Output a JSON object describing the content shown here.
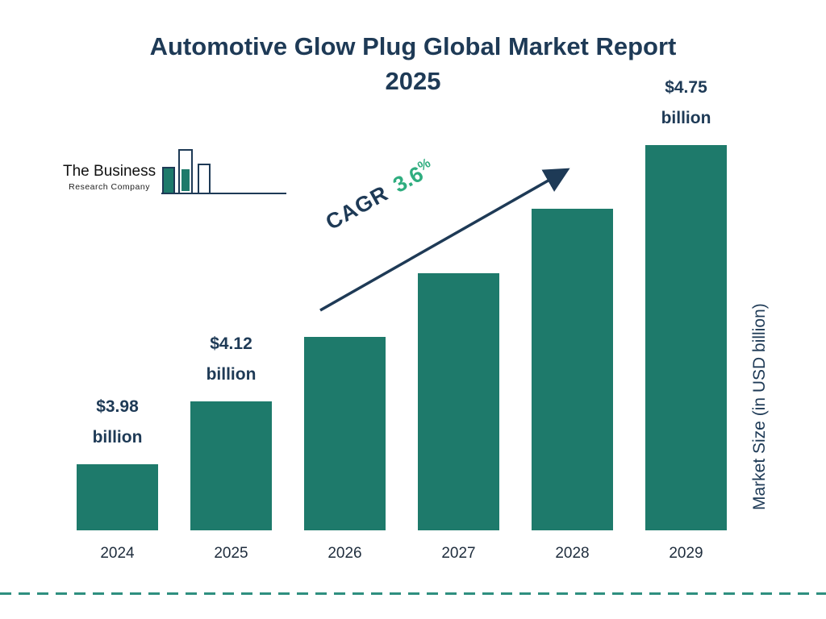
{
  "title": {
    "line1": "Automotive Glow Plug Global Market Report",
    "line2": "2025"
  },
  "logo": {
    "line1": "The Business",
    "line2": "Research Company"
  },
  "cagr": {
    "prefix": "CAGR",
    "value": "3.6",
    "percent": "%"
  },
  "colors": {
    "bar": "#1E7A6B",
    "navy": "#1E3A56",
    "green": "#2FAD7F",
    "dash": "#2E8F7F"
  },
  "chart_data": {
    "type": "bar",
    "title": "Automotive Glow Plug Global Market Report 2025",
    "categories": [
      "2024",
      "2025",
      "2026",
      "2027",
      "2028",
      "2029"
    ],
    "values": [
      3.98,
      4.12,
      null,
      null,
      null,
      4.75
    ],
    "value_labels": [
      [
        "$3.98",
        "billion"
      ],
      [
        "$4.12",
        "billion"
      ],
      null,
      null,
      null,
      [
        "$4.75",
        "billion"
      ]
    ],
    "bar_heights_rel": [
      0.172,
      0.335,
      0.503,
      0.668,
      0.834,
      1.0
    ],
    "xlabel": "",
    "ylabel": "Market Size (in USD billion)",
    "annotation": "CAGR 3.6%",
    "legend": "none",
    "grid": false
  }
}
